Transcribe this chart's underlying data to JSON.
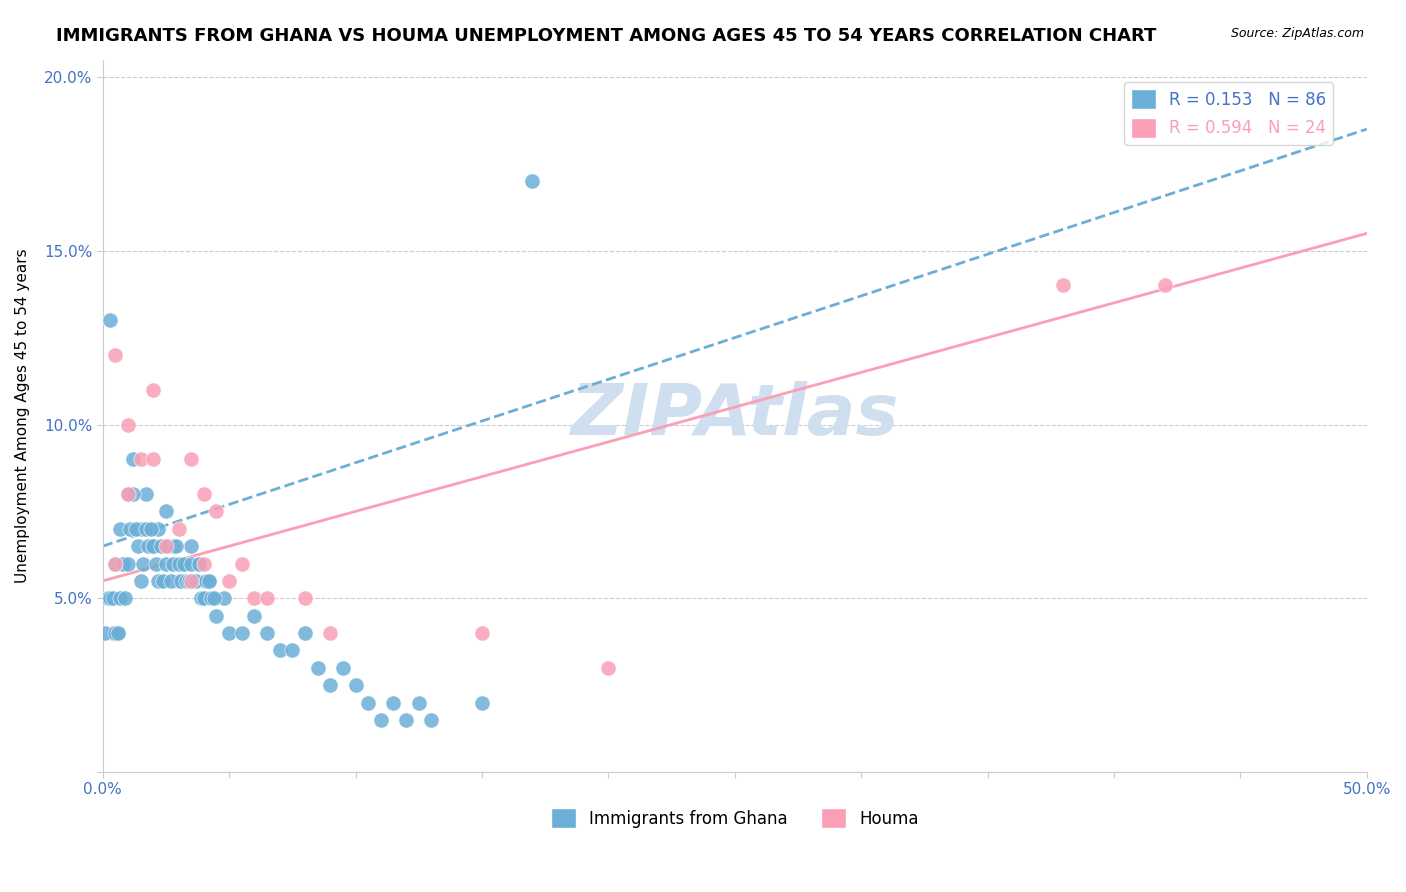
{
  "title": "IMMIGRANTS FROM GHANA VS HOUMA UNEMPLOYMENT AMONG AGES 45 TO 54 YEARS CORRELATION CHART",
  "source": "Source: ZipAtlas.com",
  "xlabel": "",
  "ylabel": "Unemployment Among Ages 45 to 54 years",
  "xlim": [
    0.0,
    0.5
  ],
  "ylim": [
    0.0,
    0.205
  ],
  "yticks": [
    0.0,
    0.05,
    0.1,
    0.15,
    0.2
  ],
  "ytick_labels": [
    "",
    "5.0%",
    "10.0%",
    "15.0%",
    "20.0%"
  ],
  "xticks": [
    0.0,
    0.05,
    0.1,
    0.15,
    0.2,
    0.25,
    0.3,
    0.35,
    0.4,
    0.45,
    0.5
  ],
  "xtick_labels": [
    "0.0%",
    "",
    "",
    "",
    "",
    "",
    "",
    "",
    "",
    "",
    "50.0%"
  ],
  "ghana_R": 0.153,
  "ghana_N": 86,
  "houma_R": 0.594,
  "houma_N": 24,
  "ghana_color": "#6baed6",
  "houma_color": "#fa9fb5",
  "ghana_line_color": "#6baed6",
  "houma_line_color": "#fa9fb5",
  "watermark": "ZIPAtlas",
  "watermark_color": "#d0dff0",
  "ghana_scatter_x": [
    0.002,
    0.003,
    0.004,
    0.005,
    0.006,
    0.007,
    0.008,
    0.01,
    0.012,
    0.015,
    0.017,
    0.02,
    0.022,
    0.025,
    0.028,
    0.03,
    0.032,
    0.035,
    0.038,
    0.04,
    0.042,
    0.045,
    0.048,
    0.05,
    0.055,
    0.06,
    0.065,
    0.07,
    0.075,
    0.08,
    0.085,
    0.09,
    0.095,
    0.1,
    0.105,
    0.11,
    0.115,
    0.12,
    0.125,
    0.13,
    0.001,
    0.002,
    0.003,
    0.004,
    0.005,
    0.006,
    0.007,
    0.008,
    0.009,
    0.01,
    0.011,
    0.012,
    0.013,
    0.014,
    0.015,
    0.016,
    0.017,
    0.018,
    0.019,
    0.02,
    0.021,
    0.022,
    0.023,
    0.024,
    0.025,
    0.026,
    0.027,
    0.028,
    0.029,
    0.03,
    0.031,
    0.032,
    0.033,
    0.034,
    0.035,
    0.036,
    0.037,
    0.038,
    0.039,
    0.04,
    0.041,
    0.042,
    0.043,
    0.044,
    0.15,
    0.17
  ],
  "ghana_scatter_y": [
    0.05,
    0.13,
    0.04,
    0.06,
    0.04,
    0.07,
    0.06,
    0.08,
    0.09,
    0.07,
    0.08,
    0.065,
    0.07,
    0.075,
    0.065,
    0.055,
    0.06,
    0.065,
    0.06,
    0.05,
    0.055,
    0.045,
    0.05,
    0.04,
    0.04,
    0.045,
    0.04,
    0.035,
    0.035,
    0.04,
    0.03,
    0.025,
    0.03,
    0.025,
    0.02,
    0.015,
    0.02,
    0.015,
    0.02,
    0.015,
    0.04,
    0.05,
    0.05,
    0.05,
    0.04,
    0.04,
    0.05,
    0.06,
    0.05,
    0.06,
    0.07,
    0.08,
    0.07,
    0.065,
    0.055,
    0.06,
    0.07,
    0.065,
    0.07,
    0.065,
    0.06,
    0.055,
    0.065,
    0.055,
    0.06,
    0.065,
    0.055,
    0.06,
    0.065,
    0.06,
    0.055,
    0.06,
    0.055,
    0.055,
    0.06,
    0.055,
    0.055,
    0.06,
    0.05,
    0.05,
    0.055,
    0.055,
    0.05,
    0.05,
    0.02,
    0.17
  ],
  "houma_scatter_x": [
    0.005,
    0.01,
    0.015,
    0.02,
    0.025,
    0.03,
    0.035,
    0.04,
    0.045,
    0.05,
    0.055,
    0.06,
    0.065,
    0.38,
    0.42,
    0.005,
    0.01,
    0.02,
    0.035,
    0.04,
    0.08,
    0.09,
    0.15,
    0.2
  ],
  "houma_scatter_y": [
    0.06,
    0.08,
    0.09,
    0.11,
    0.065,
    0.07,
    0.055,
    0.06,
    0.075,
    0.055,
    0.06,
    0.05,
    0.05,
    0.14,
    0.14,
    0.12,
    0.1,
    0.09,
    0.09,
    0.08,
    0.05,
    0.04,
    0.04,
    0.03
  ],
  "ghana_line_x": [
    0.0,
    0.5
  ],
  "ghana_line_y_start": 0.065,
  "ghana_line_y_end": 0.185,
  "houma_line_x": [
    0.0,
    0.5
  ],
  "houma_line_y_start": 0.055,
  "houma_line_y_end": 0.155,
  "background_color": "#ffffff",
  "grid_color": "#cccccc",
  "tick_color": "#4472c4",
  "title_fontsize": 13,
  "axis_label_fontsize": 11,
  "tick_fontsize": 11,
  "legend_fontsize": 12
}
